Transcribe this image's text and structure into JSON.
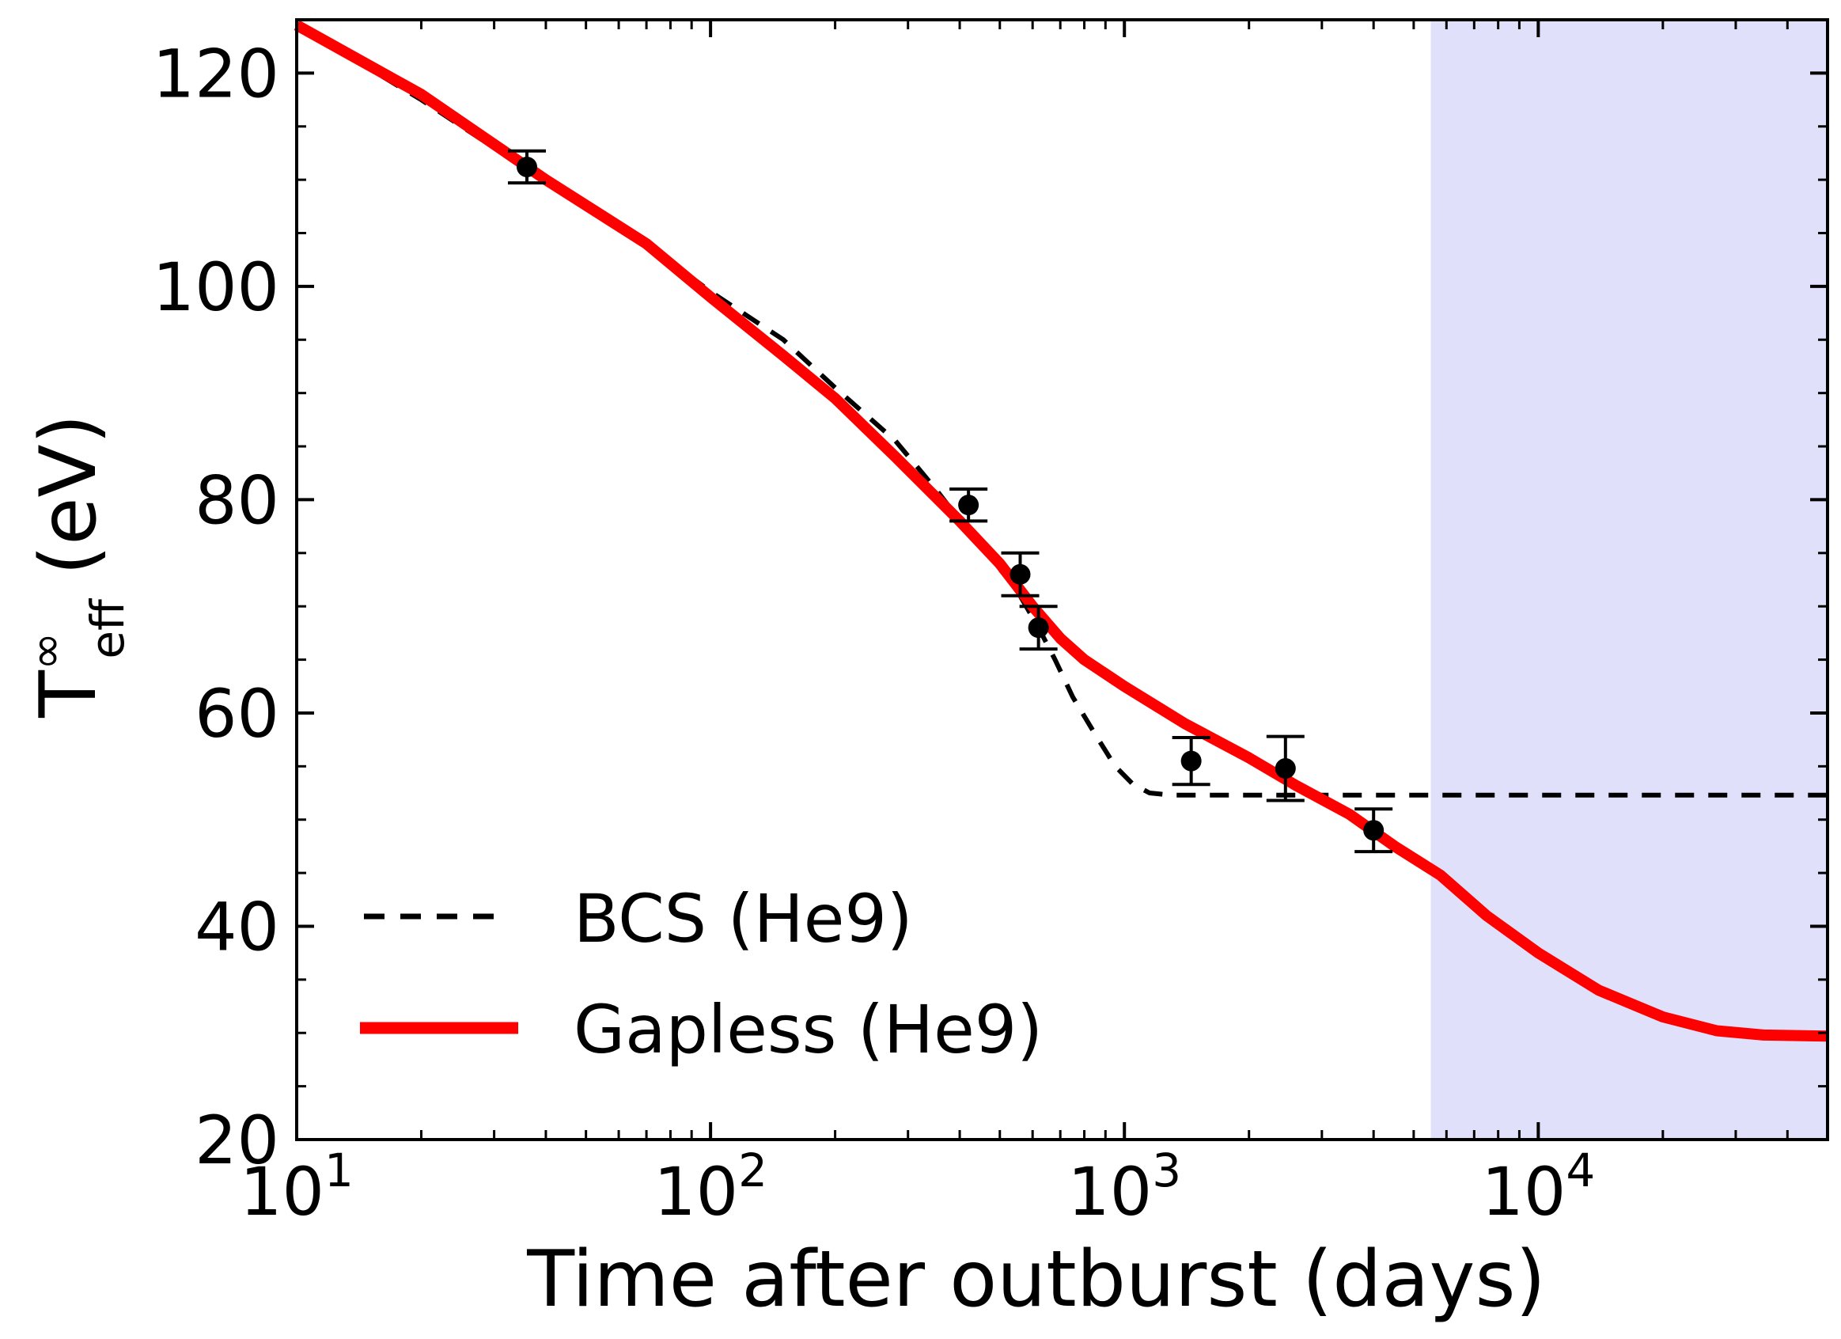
{
  "chart_data": {
    "type": "line",
    "xscale": "log",
    "xlim": [
      10,
      50000
    ],
    "ylim": [
      20,
      125
    ],
    "xlabel": "Time after outburst (days)",
    "ylabel_main": "T",
    "ylabel_sup": "∞",
    "ylabel_sub": "eff",
    "ylabel_unit": "(eV)",
    "x_ticks": [
      {
        "value": 10,
        "base": "10",
        "exp": "1"
      },
      {
        "value": 100,
        "base": "10",
        "exp": "2"
      },
      {
        "value": 1000,
        "base": "10",
        "exp": "3"
      },
      {
        "value": 10000,
        "base": "10",
        "exp": "4"
      }
    ],
    "y_ticks": [
      20,
      40,
      60,
      80,
      100,
      120
    ],
    "shaded_region": {
      "x": [
        5500,
        50000
      ],
      "color": "#e0e0fa"
    },
    "grid": false,
    "legend_position": "lower-left",
    "series": [
      {
        "name": "BCS (He9)",
        "style": "dashed",
        "color": "#000000",
        "points": [
          [
            10,
            124.5
          ],
          [
            20,
            117.5
          ],
          [
            40,
            109.8
          ],
          [
            70,
            104
          ],
          [
            100,
            99.5
          ],
          [
            150,
            95
          ],
          [
            200,
            90.5
          ],
          [
            280,
            85.5
          ],
          [
            350,
            81
          ],
          [
            420,
            77
          ],
          [
            500,
            73.5
          ],
          [
            550,
            71.5
          ],
          [
            620,
            68
          ],
          [
            680,
            65
          ],
          [
            750,
            61.5
          ],
          [
            850,
            58
          ],
          [
            950,
            55
          ],
          [
            1050,
            53.3
          ],
          [
            1150,
            52.5
          ],
          [
            1300,
            52.3
          ],
          [
            2000,
            52.3
          ],
          [
            5000,
            52.3
          ],
          [
            10000,
            52.3
          ],
          [
            50000,
            52.3
          ]
        ]
      },
      {
        "name": "Gapless (He9)",
        "style": "solid",
        "color": "#ff0000",
        "points": [
          [
            10,
            124.5
          ],
          [
            20,
            118
          ],
          [
            40,
            110
          ],
          [
            70,
            104
          ],
          [
            100,
            99
          ],
          [
            150,
            93.5
          ],
          [
            200,
            89.5
          ],
          [
            280,
            84
          ],
          [
            400,
            78
          ],
          [
            500,
            74
          ],
          [
            600,
            70
          ],
          [
            700,
            67
          ],
          [
            800,
            65
          ],
          [
            1000,
            62.5
          ],
          [
            1400,
            59
          ],
          [
            2000,
            55.8
          ],
          [
            2600,
            53.2
          ],
          [
            3500,
            50.5
          ],
          [
            4500,
            47.5
          ],
          [
            5800,
            44.8
          ],
          [
            7500,
            41
          ],
          [
            10000,
            37.5
          ],
          [
            14000,
            34
          ],
          [
            20000,
            31.5
          ],
          [
            27000,
            30.2
          ],
          [
            35000,
            29.8
          ],
          [
            50000,
            29.7
          ]
        ]
      }
    ],
    "observations": [
      {
        "x": 36,
        "y": 111.2,
        "yerr_low": 1.5,
        "yerr_high": 1.5
      },
      {
        "x": 420,
        "y": 79.5,
        "yerr_low": 1.5,
        "yerr_high": 1.5
      },
      {
        "x": 560,
        "y": 73.0,
        "yerr_low": 2.0,
        "yerr_high": 2.0
      },
      {
        "x": 620,
        "y": 68.0,
        "yerr_low": 2.0,
        "yerr_high": 2.0
      },
      {
        "x": 1450,
        "y": 55.5,
        "yerr_low": 2.2,
        "yerr_high": 2.2
      },
      {
        "x": 2450,
        "y": 54.8,
        "yerr_low": 3.0,
        "yerr_high": 3.0
      },
      {
        "x": 4000,
        "y": 49.0,
        "yerr_low": 2.0,
        "yerr_high": 2.0
      }
    ]
  }
}
